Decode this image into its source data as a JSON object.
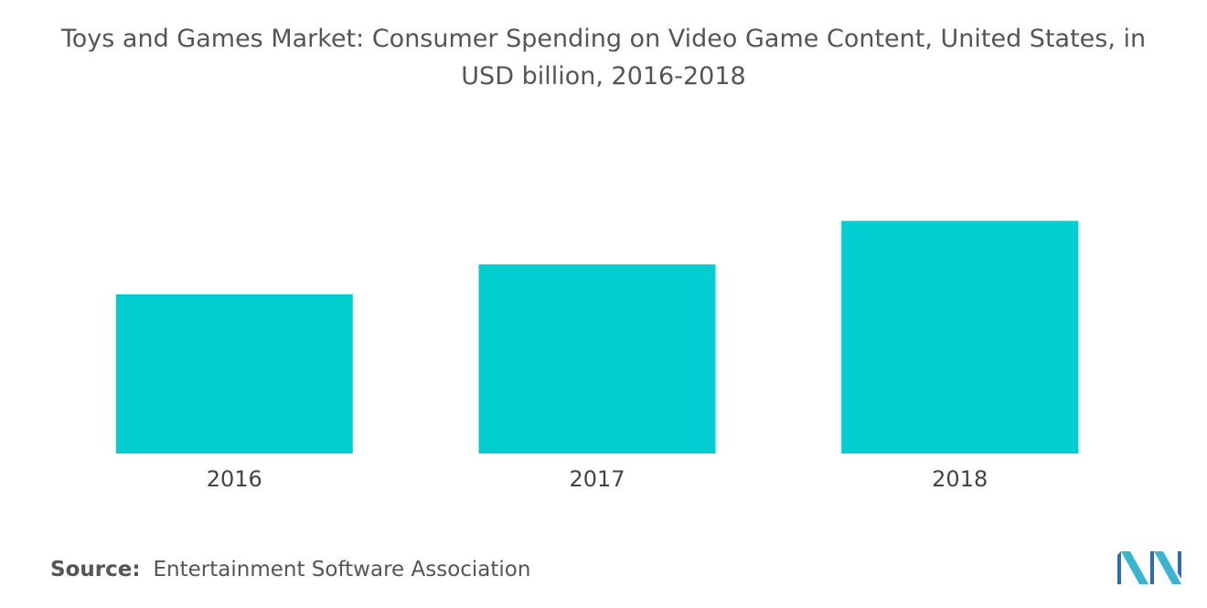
{
  "title": {
    "line1": "Toys and Games Market: Consumer Spending on Video Game Content, United States, in",
    "line2": "USD billion, 2016-2018"
  },
  "chart_data": {
    "type": "bar",
    "title": "Toys and Games Market: Consumer Spending on Video Game Content, United States, in USD billion, 2016-2018",
    "categories": [
      "2016",
      "2017",
      "2018"
    ],
    "values": [
      24.5,
      29.1,
      35.8
    ],
    "ylim": [
      0,
      38
    ],
    "grid": false,
    "legend": "none",
    "color": "#00CED1"
  },
  "source": {
    "label": "Source:",
    "text": "Entertainment Software Association"
  },
  "logo": {
    "icon": "mordor-intelligence-logo-icon",
    "colors": [
      "#2E6DB4",
      "#39B5D0"
    ]
  }
}
